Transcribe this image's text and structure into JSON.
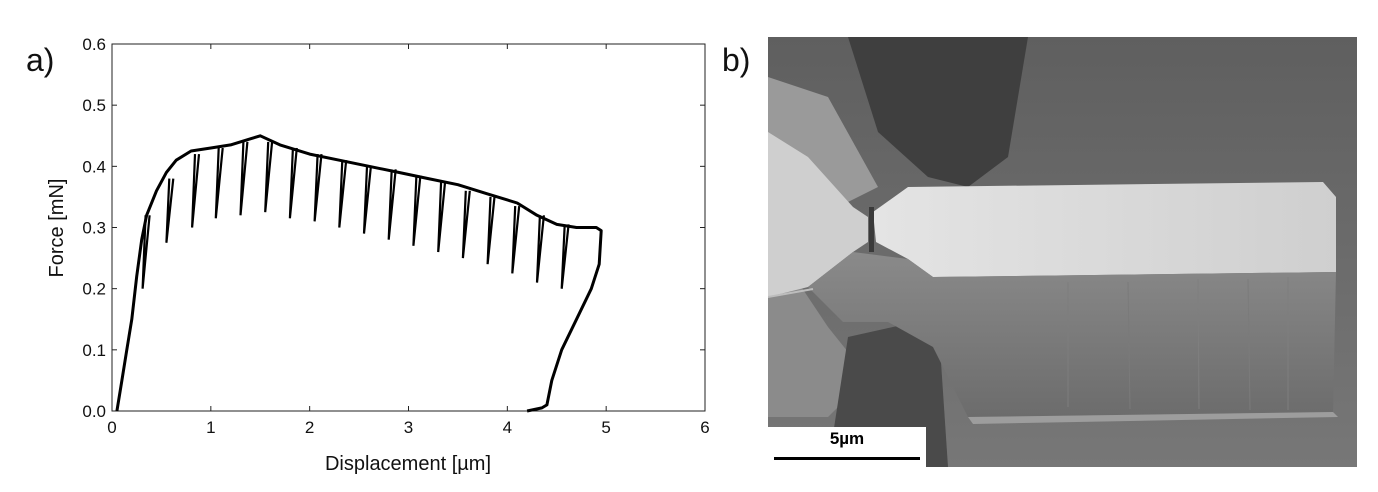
{
  "panels": {
    "a_label": "a)",
    "b_label": "b)"
  },
  "chart_data": {
    "type": "line",
    "title": "",
    "xlabel": "Displacement [µm]",
    "ylabel": "Force [mN]",
    "xlim": [
      0,
      6
    ],
    "ylim": [
      0,
      0.6
    ],
    "xticks": [
      "0",
      "1",
      "2",
      "3",
      "4",
      "5",
      "6"
    ],
    "yticks": [
      "0.0",
      "0.1",
      "0.2",
      "0.3",
      "0.4",
      "0.5",
      "0.6"
    ],
    "grid": false,
    "series": [
      {
        "color": "#000000",
        "points": [
          [
            0.05,
            0.0
          ],
          [
            0.1,
            0.05
          ],
          [
            0.15,
            0.1
          ],
          [
            0.2,
            0.15
          ],
          [
            0.25,
            0.22
          ],
          [
            0.3,
            0.28
          ],
          [
            0.35,
            0.32
          ],
          [
            0.45,
            0.36
          ],
          [
            0.55,
            0.39
          ],
          [
            0.65,
            0.41
          ],
          [
            0.8,
            0.425
          ],
          [
            1.0,
            0.43
          ],
          [
            1.2,
            0.435
          ],
          [
            1.4,
            0.445
          ],
          [
            1.5,
            0.45
          ],
          [
            1.7,
            0.435
          ],
          [
            2.0,
            0.42
          ],
          [
            2.3,
            0.41
          ],
          [
            2.6,
            0.4
          ],
          [
            2.9,
            0.39
          ],
          [
            3.2,
            0.38
          ],
          [
            3.5,
            0.37
          ],
          [
            3.8,
            0.355
          ],
          [
            4.1,
            0.34
          ],
          [
            4.3,
            0.32
          ],
          [
            4.5,
            0.305
          ],
          [
            4.7,
            0.3
          ],
          [
            4.9,
            0.3
          ],
          [
            4.95,
            0.295
          ],
          [
            4.93,
            0.24
          ],
          [
            4.85,
            0.2
          ],
          [
            4.7,
            0.15
          ],
          [
            4.55,
            0.1
          ],
          [
            4.45,
            0.05
          ],
          [
            4.4,
            0.01
          ],
          [
            4.35,
            0.005
          ],
          [
            4.2,
            0.0
          ]
        ]
      }
    ],
    "unloading_segments": [
      [
        0.38,
        0.32,
        0.2
      ],
      [
        0.62,
        0.38,
        0.275
      ],
      [
        0.88,
        0.42,
        0.3
      ],
      [
        1.12,
        0.43,
        0.315
      ],
      [
        1.37,
        0.44,
        0.32
      ],
      [
        1.62,
        0.44,
        0.325
      ],
      [
        1.87,
        0.43,
        0.315
      ],
      [
        2.12,
        0.42,
        0.31
      ],
      [
        2.37,
        0.41,
        0.3
      ],
      [
        2.62,
        0.4,
        0.29
      ],
      [
        2.87,
        0.395,
        0.28
      ],
      [
        3.12,
        0.385,
        0.27
      ],
      [
        3.37,
        0.375,
        0.26
      ],
      [
        3.62,
        0.36,
        0.25
      ],
      [
        3.87,
        0.35,
        0.24
      ],
      [
        4.12,
        0.335,
        0.225
      ],
      [
        4.37,
        0.32,
        0.21
      ],
      [
        4.62,
        0.305,
        0.2
      ]
    ]
  },
  "image_b": {
    "scale_bar_label": "5µm"
  }
}
